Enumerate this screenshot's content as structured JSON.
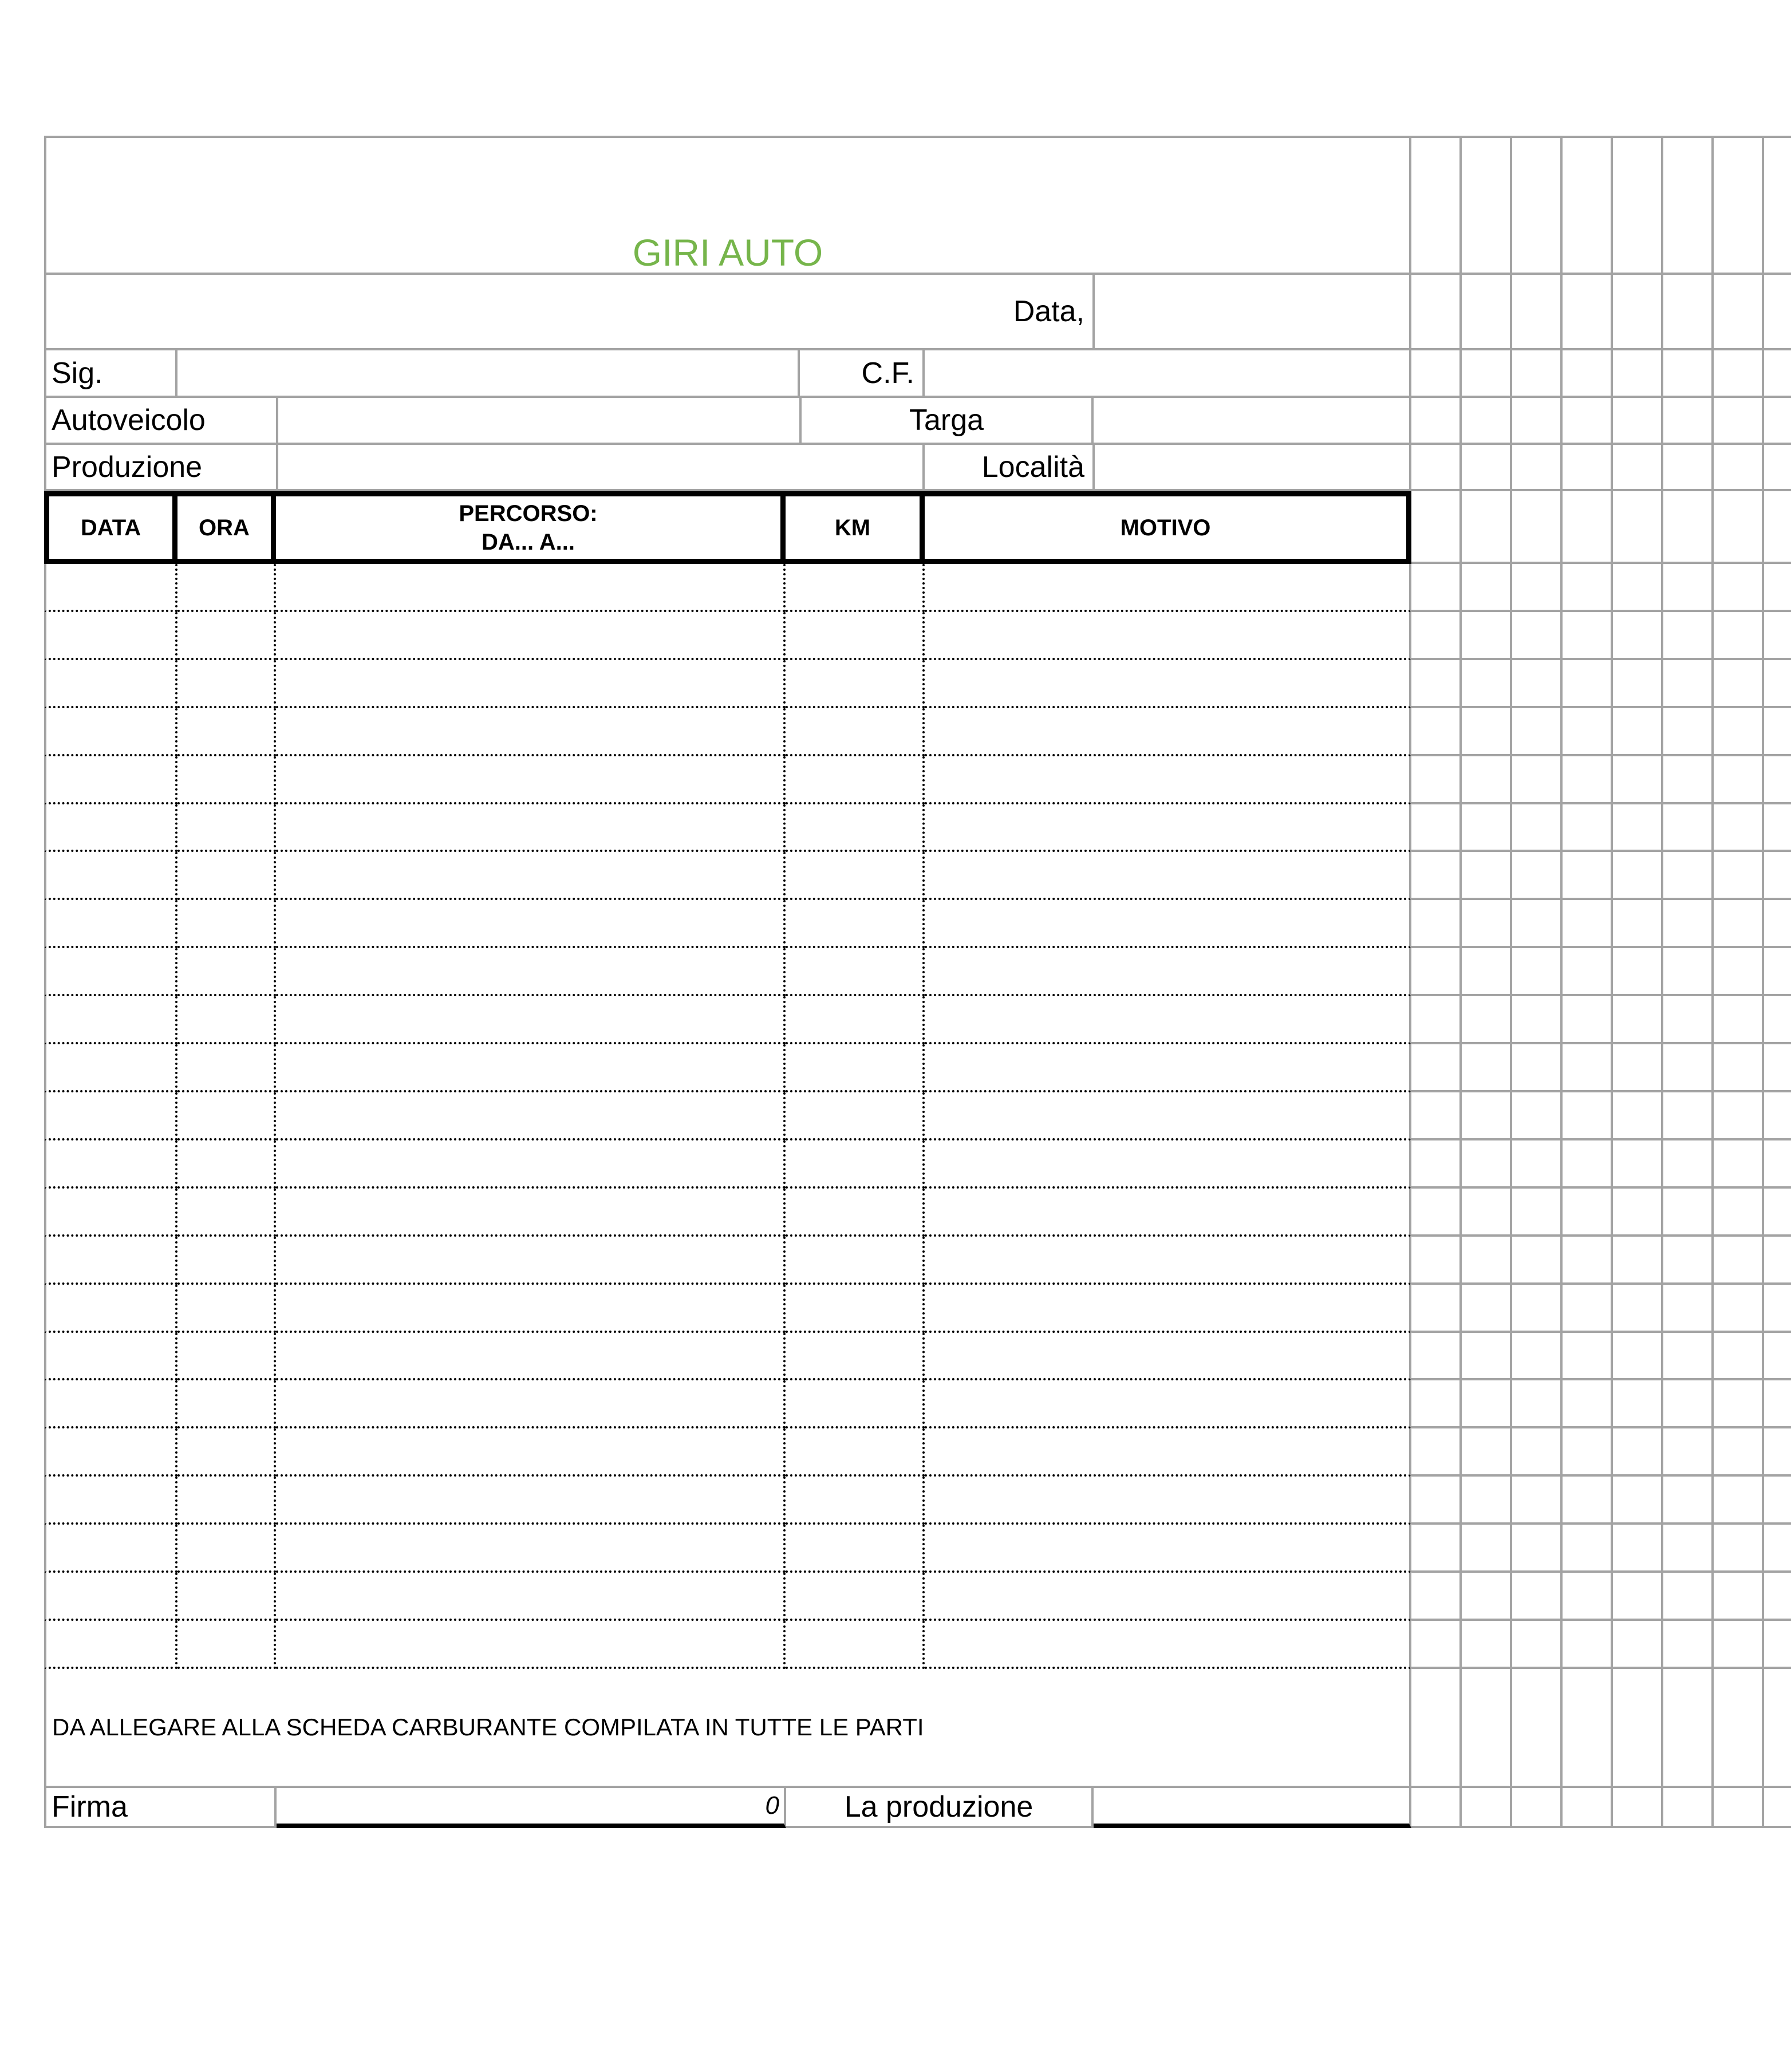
{
  "sheet": {
    "title": "GIRI AUTO",
    "header_fields": {
      "data_label": "Data,",
      "data_value": "",
      "sig_label": "Sig.",
      "sig_value": "",
      "cf_label": "C.F.",
      "cf_value": "",
      "autoveicolo_label": "Autoveicolo",
      "autoveicolo_value": "",
      "targa_label": "Targa",
      "targa_value": "",
      "produzione_label": "Produzione",
      "produzione_value": "",
      "localita_label": "Località",
      "localita_value": ""
    },
    "trip_table": {
      "col_data": "DATA",
      "col_ora": "ORA",
      "col_percorso_line1": "PERCORSO:",
      "col_percorso_line2": "DA... A...",
      "col_km": "KM",
      "col_motivo": "MOTIVO",
      "body_row_count": 23
    },
    "note": "DA ALLEGARE ALLA SCHEDA CARBURANTE COMPILATA IN TUTTE LE PARTI",
    "footer": {
      "firma_label": "Firma",
      "firma_value": "",
      "km_total_value": "0",
      "produzione_label": "La produzione",
      "produzione_value": ""
    },
    "colors": {
      "title_green": "#76B54B",
      "grid_gray": "#A3A3A3"
    }
  }
}
